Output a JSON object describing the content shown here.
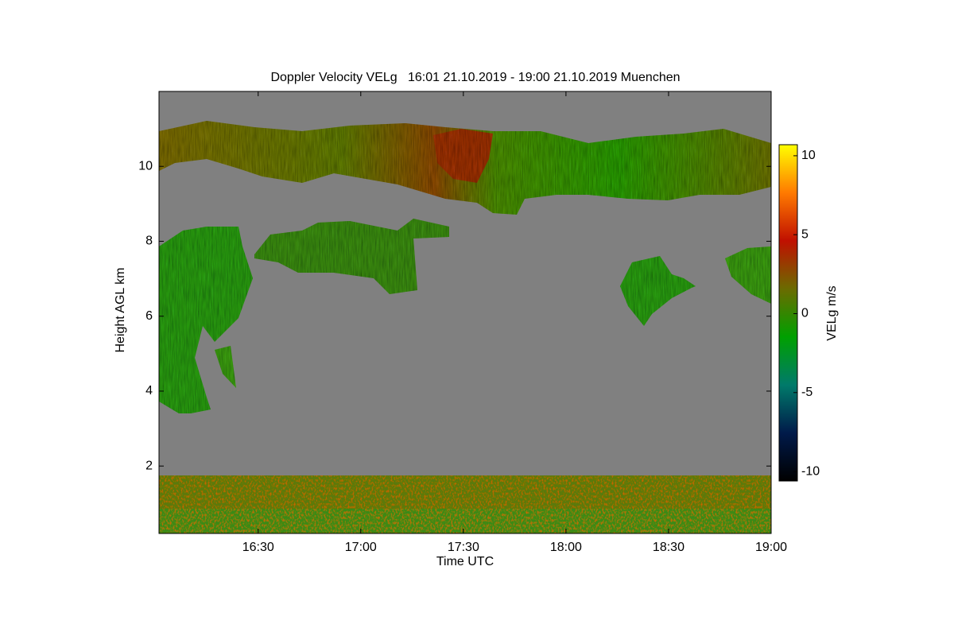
{
  "chart_data": {
    "type": "heatmap",
    "title": "Doppler Velocity VELg   16:01 21.10.2019 - 19:00 21.10.2019 Muenchen",
    "x_label": "Time UTC",
    "y_label": "Height AGL km",
    "xlim": [
      961,
      1140
    ],
    "xticks": [
      {
        "value": 990,
        "label": "16:30"
      },
      {
        "value": 1020,
        "label": "17:00"
      },
      {
        "value": 1050,
        "label": "17:30"
      },
      {
        "value": 1080,
        "label": "18:00"
      },
      {
        "value": 1110,
        "label": "18:30"
      },
      {
        "value": 1140,
        "label": "19:00"
      }
    ],
    "ylim": [
      0.2,
      12
    ],
    "yticks": [
      2,
      4,
      6,
      8,
      10
    ],
    "colorbar": {
      "label": "VELg m/s",
      "lim": [
        -10.6,
        10.7
      ],
      "ticks": [
        -10,
        -5,
        0,
        5,
        10
      ],
      "colors": [
        "#000000",
        "#001a4a",
        "#007a6a",
        "#00a000",
        "#6b6b00",
        "#c01000",
        "#ff7a00",
        "#ffff00"
      ]
    }
  }
}
